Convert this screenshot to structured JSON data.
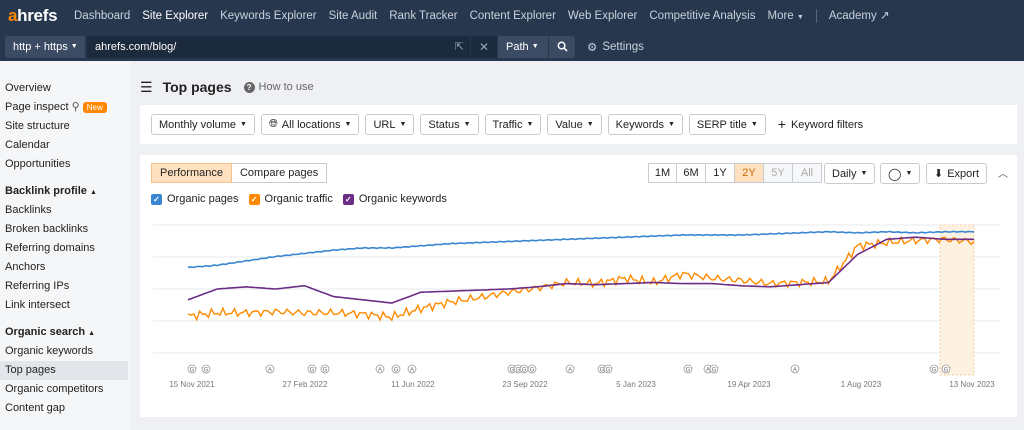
{
  "nav": {
    "logo_a": "a",
    "logo_rest": "hrefs",
    "items": [
      "Dashboard",
      "Site Explorer",
      "Keywords Explorer",
      "Site Audit",
      "Rank Tracker",
      "Content Explorer",
      "Web Explorer",
      "Competitive Analysis",
      "More"
    ],
    "academy": "Academy"
  },
  "urlbar": {
    "protocol": "http + https",
    "url": "ahrefs.com/blog/",
    "mode": "Path",
    "settings": "Settings"
  },
  "sidebar": {
    "top": [
      "Overview",
      "Page inspect",
      "Site structure",
      "Calendar",
      "Opportunities"
    ],
    "new_badge": "New",
    "backlink_head": "Backlink profile",
    "backlink": [
      "Backlinks",
      "Broken backlinks",
      "Referring domains",
      "Anchors",
      "Referring IPs",
      "Link intersect"
    ],
    "organic_head": "Organic search",
    "organic": [
      "Organic keywords",
      "Top pages",
      "Organic competitors",
      "Content gap"
    ]
  },
  "page": {
    "title": "Top pages",
    "howto": "How to use"
  },
  "filters": {
    "items": [
      "Monthly volume",
      "All locations",
      "URL",
      "Status",
      "Traffic",
      "Value",
      "Keywords",
      "SERP title"
    ],
    "keyword_filters": "Keyword filters"
  },
  "panel": {
    "tabs": [
      "Performance",
      "Compare pages"
    ],
    "ranges": [
      "1M",
      "6M",
      "1Y",
      "2Y",
      "5Y",
      "All"
    ],
    "active_range": "2Y",
    "granularity": "Daily",
    "export": "Export"
  },
  "chart_data": {
    "type": "line",
    "x_ticks": [
      "15 Nov 2021",
      "27 Feb 2022",
      "11 Jun 2022",
      "23 Sep 2022",
      "5 Jan 2023",
      "19 Apr 2023",
      "1 Aug 2023",
      "13 Nov 2023"
    ],
    "series": [
      {
        "name": "Organic pages",
        "color": "#3b86d1",
        "checked": true,
        "values": [
          0.7,
          0.72,
          0.76,
          0.8,
          0.83,
          0.86,
          0.88,
          0.88,
          0.9,
          0.92,
          0.93,
          0.94,
          0.95,
          0.96,
          0.97,
          0.98,
          0.99,
          1.0,
          1.0,
          1.0,
          1.01,
          1.02,
          1.03,
          1.02,
          1.03,
          1.02,
          1.03,
          1.03
        ]
      },
      {
        "name": "Organic traffic",
        "color": "#ff8a00",
        "checked": true,
        "values": [
          0.25,
          0.28,
          0.28,
          0.29,
          0.28,
          0.28,
          0.27,
          0.24,
          0.32,
          0.38,
          0.42,
          0.47,
          0.51,
          0.56,
          0.55,
          0.6,
          0.56,
          0.64,
          0.6,
          0.58,
          0.55,
          0.56,
          0.57,
          0.9,
          0.93,
          0.95,
          0.96,
          0.94
        ]
      },
      {
        "name": "Organic keywords",
        "color": "#6b2d86",
        "checked": true,
        "values": [
          0.4,
          0.5,
          0.52,
          0.5,
          0.53,
          0.43,
          0.4,
          0.37,
          0.47,
          0.48,
          0.49,
          0.5,
          0.52,
          0.55,
          0.54,
          0.55,
          0.56,
          0.55,
          0.55,
          0.53,
          0.52,
          0.54,
          0.56,
          0.82,
          0.96,
          0.98,
          0.96,
          0.96
        ]
      }
    ],
    "annotation_markers": [
      "G",
      "G",
      "A",
      "G",
      "G",
      "A",
      "G",
      "A",
      "G",
      "G",
      "G",
      "G",
      "A",
      "G",
      "G",
      "G",
      "A",
      "G",
      "A",
      "G",
      "G"
    ],
    "highlight_range": "last month",
    "grid": true
  }
}
